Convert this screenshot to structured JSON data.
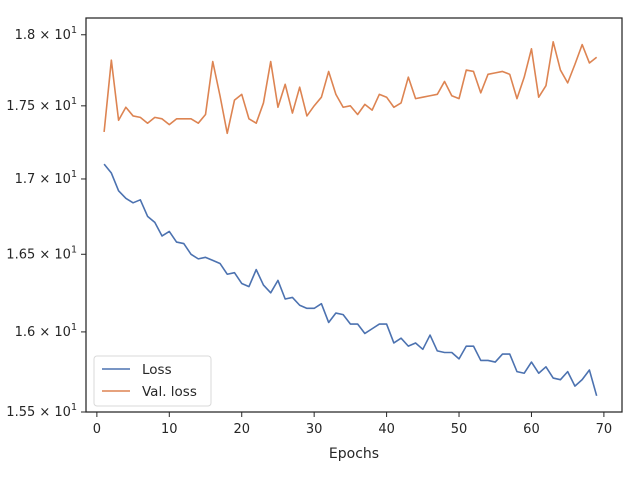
{
  "chart_data": {
    "type": "line",
    "xlabel": "Epochs",
    "ylabel": "",
    "yscale": "log",
    "xlim": [
      -1.5,
      72.5
    ],
    "ylim": [
      15.5,
      18.12
    ],
    "xticks": [
      0,
      10,
      20,
      30,
      40,
      50,
      60,
      70
    ],
    "xtick_labels": [
      "0",
      "10",
      "20",
      "30",
      "40",
      "50",
      "60",
      "70"
    ],
    "yticks": [
      {
        "value": 15.5,
        "mantissa": "1.55",
        "exponent": "1"
      },
      {
        "value": 16.0,
        "mantissa": "1.6",
        "exponent": "1"
      },
      {
        "value": 16.5,
        "mantissa": "1.65",
        "exponent": "1"
      },
      {
        "value": 17.0,
        "mantissa": "1.7",
        "exponent": "1"
      },
      {
        "value": 17.5,
        "mantissa": "1.75",
        "exponent": "1"
      },
      {
        "value": 18.0,
        "mantissa": "1.8",
        "exponent": "1"
      }
    ],
    "tick_times_symbol": "×",
    "tick_base": "10",
    "legend_position": "lower-left",
    "grid": false,
    "x": [
      1,
      2,
      3,
      4,
      5,
      6,
      7,
      8,
      9,
      10,
      11,
      12,
      13,
      14,
      15,
      16,
      17,
      18,
      19,
      20,
      21,
      22,
      23,
      24,
      25,
      26,
      27,
      28,
      29,
      30,
      31,
      32,
      33,
      34,
      35,
      36,
      37,
      38,
      39,
      40,
      41,
      42,
      43,
      44,
      45,
      46,
      47,
      48,
      49,
      50,
      51,
      52,
      53,
      54,
      55,
      56,
      57,
      58,
      59,
      60,
      61,
      62,
      63,
      64,
      65,
      66,
      67,
      68,
      69
    ],
    "series": [
      {
        "name": "Loss",
        "color": "#4c72b0",
        "values": [
          17.1,
          17.04,
          16.92,
          16.87,
          16.84,
          16.86,
          16.75,
          16.71,
          16.62,
          16.65,
          16.58,
          16.57,
          16.5,
          16.47,
          16.48,
          16.46,
          16.44,
          16.37,
          16.38,
          16.31,
          16.29,
          16.4,
          16.3,
          16.25,
          16.33,
          16.21,
          16.22,
          16.17,
          16.15,
          16.15,
          16.18,
          16.06,
          16.12,
          16.11,
          16.05,
          16.05,
          15.99,
          16.02,
          16.05,
          16.05,
          15.93,
          15.96,
          15.91,
          15.93,
          15.89,
          15.98,
          15.88,
          15.87,
          15.87,
          15.83,
          15.91,
          15.91,
          15.82,
          15.82,
          15.81,
          15.86,
          15.86,
          15.75,
          15.74,
          15.81,
          15.74,
          15.78,
          15.71,
          15.7,
          15.75,
          15.66,
          15.7,
          15.76,
          15.6
        ]
      },
      {
        "name": "Val. loss",
        "color": "#dd8452",
        "values": [
          17.32,
          17.82,
          17.4,
          17.49,
          17.43,
          17.42,
          17.38,
          17.42,
          17.41,
          17.37,
          17.41,
          17.41,
          17.41,
          17.38,
          17.44,
          17.81,
          17.57,
          17.31,
          17.54,
          17.58,
          17.41,
          17.38,
          17.52,
          17.81,
          17.49,
          17.65,
          17.45,
          17.63,
          17.43,
          17.5,
          17.56,
          17.74,
          17.58,
          17.49,
          17.5,
          17.44,
          17.51,
          17.47,
          17.58,
          17.56,
          17.49,
          17.52,
          17.7,
          17.55,
          17.56,
          17.57,
          17.58,
          17.67,
          17.57,
          17.55,
          17.75,
          17.74,
          17.59,
          17.72,
          17.73,
          17.74,
          17.72,
          17.55,
          17.7,
          17.9,
          17.56,
          17.64,
          17.95,
          17.75,
          17.66,
          17.79,
          17.93,
          17.8,
          17.84
        ]
      }
    ]
  }
}
